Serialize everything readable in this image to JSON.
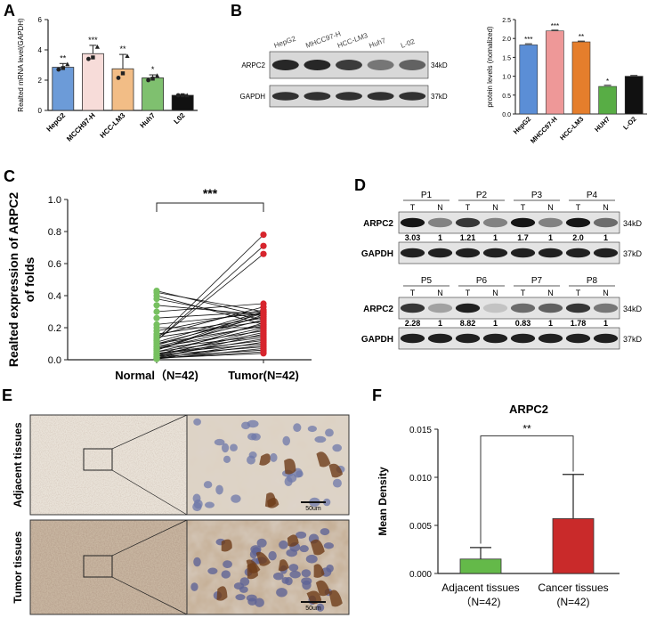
{
  "panels": {
    "A": {
      "letter": "A",
      "chart_data": {
        "type": "bar",
        "categories": [
          "HepG2",
          "MCCH97-H",
          "HCC-LM3",
          "Huh7",
          "L02"
        ],
        "values": [
          2.85,
          3.75,
          2.75,
          2.15,
          1.0
        ],
        "errors": [
          0.25,
          0.55,
          0.95,
          0.2,
          0.05
        ],
        "points": [
          [
            2.7,
            2.8,
            3.05
          ],
          [
            3.4,
            3.5,
            4.2
          ],
          [
            2.15,
            2.45,
            3.6
          ],
          [
            2.0,
            2.1,
            2.3
          ],
          [
            1.0,
            1.0,
            1.0
          ]
        ],
        "significance": [
          "**",
          "***",
          "**",
          "*",
          ""
        ],
        "colors": [
          "#6c9bd8",
          "#f7dcd9",
          "#f2bd86",
          "#7fc06f",
          "#111111"
        ],
        "ylabel": "Realted mRNA level(GAPDH)",
        "ylim": [
          0,
          6
        ],
        "yticks": [
          "0",
          "2",
          "4",
          "6"
        ]
      }
    },
    "B": {
      "letter": "B",
      "blot": {
        "lanes": [
          "HepG2",
          "MHCC97-H",
          "HCC-LM3",
          "Huh7",
          "L-02"
        ],
        "rows": [
          "ARPC2",
          "GAPDH"
        ],
        "sizes": [
          "34kD",
          "37kD"
        ]
      },
      "chart_data": {
        "type": "bar",
        "categories": [
          "HepG2",
          "MHCC97-H",
          "HCC-LM3",
          "HUH7",
          "L-O2"
        ],
        "values": [
          1.83,
          2.2,
          1.91,
          0.73,
          1.0
        ],
        "errors": [
          0.03,
          0.02,
          0.02,
          0.03,
          0.02
        ],
        "significance": [
          "***",
          "***",
          "**",
          "*",
          ""
        ],
        "colors": [
          "#5b8ed6",
          "#ee9898",
          "#e57e2c",
          "#58ad45",
          "#111111"
        ],
        "ylabel": "protein levels (nomalized)",
        "ylim": [
          0,
          2.5
        ],
        "yticks": [
          "0.0",
          "0.5",
          "1.0",
          "1.5",
          "2.0",
          "2.5"
        ]
      }
    },
    "C": {
      "letter": "C",
      "chart_data": {
        "type": "scatter",
        "x": [
          "Normal（N=42)",
          "Tumor(N=42)"
        ],
        "pairs": [
          [
            0.43,
            0.27
          ],
          [
            0.42,
            0.3
          ],
          [
            0.4,
            0.22
          ],
          [
            0.38,
            0.25
          ],
          [
            0.34,
            0.28
          ],
          [
            0.3,
            0.35
          ],
          [
            0.26,
            0.3
          ],
          [
            0.22,
            0.29
          ],
          [
            0.2,
            0.2
          ],
          [
            0.18,
            0.31
          ],
          [
            0.16,
            0.26
          ],
          [
            0.15,
            0.33
          ],
          [
            0.14,
            0.24
          ],
          [
            0.13,
            0.78
          ],
          [
            0.12,
            0.71
          ],
          [
            0.12,
            0.66
          ],
          [
            0.11,
            0.3
          ],
          [
            0.1,
            0.27
          ],
          [
            0.1,
            0.21
          ],
          [
            0.09,
            0.29
          ],
          [
            0.08,
            0.25
          ],
          [
            0.08,
            0.18
          ],
          [
            0.07,
            0.22
          ],
          [
            0.07,
            0.15
          ],
          [
            0.06,
            0.3
          ],
          [
            0.06,
            0.28
          ],
          [
            0.05,
            0.2
          ],
          [
            0.05,
            0.14
          ],
          [
            0.04,
            0.12
          ],
          [
            0.04,
            0.1
          ],
          [
            0.03,
            0.17
          ],
          [
            0.03,
            0.23
          ],
          [
            0.03,
            0.08
          ],
          [
            0.02,
            0.13
          ],
          [
            0.02,
            0.06
          ],
          [
            0.02,
            0.19
          ],
          [
            0.01,
            0.09
          ],
          [
            0.01,
            0.16
          ],
          [
            0.01,
            0.05
          ],
          [
            0.01,
            0.04
          ],
          [
            0.005,
            0.11
          ],
          [
            0.005,
            0.07
          ]
        ],
        "colors": {
          "normal": "#77c060",
          "tumor": "#d7252d"
        },
        "ylabel_line1": "Realted  expression of ARPC2",
        "ylabel_line2": "of folds",
        "ylim": [
          0,
          1.0
        ],
        "yticks": [
          "0.0",
          "0.2",
          "0.4",
          "0.6",
          "0.8",
          "1.0"
        ],
        "significance": "***"
      }
    },
    "D": {
      "letter": "D",
      "blocks": [
        {
          "patients": [
            "P1",
            "P2",
            "P3",
            "P4"
          ],
          "values": [
            "3.03",
            "1",
            "1.21",
            "1",
            "1.7",
            "1",
            "2.0",
            "1"
          ],
          "strengths": [
            0.95,
            0.45,
            0.8,
            0.45,
            0.95,
            0.45,
            0.95,
            0.55
          ]
        },
        {
          "patients": [
            "P5",
            "P6",
            "P7",
            "P8"
          ],
          "values": [
            "2.28",
            "1",
            "8.82",
            "1",
            "0.83",
            "1",
            "1.78",
            "1"
          ],
          "strengths": [
            0.8,
            0.3,
            0.9,
            0.15,
            0.55,
            0.6,
            0.8,
            0.5
          ]
        }
      ],
      "lane_labels": [
        "T",
        "N"
      ],
      "rows": [
        "ARPC2",
        "GAPDH"
      ],
      "sizes": [
        "34kD",
        "37kD"
      ]
    },
    "E": {
      "letter": "E",
      "rows": [
        "Adjacent tissues",
        "Tumor tissues"
      ],
      "scale_bar": "50um"
    },
    "F": {
      "letter": "F",
      "chart_data": {
        "type": "bar",
        "title": "ARPC2",
        "categories": [
          "Adjacent tissues",
          "Cancer tissues"
        ],
        "sublabels": [
          "（N=42)",
          "(N=42)"
        ],
        "values": [
          0.0015,
          0.0057
        ],
        "errors": [
          0.0012,
          0.0046
        ],
        "colors": [
          "#64b949",
          "#c92a2a"
        ],
        "ylabel": "Mean Density",
        "ylim": [
          0,
          0.015
        ],
        "yticks": [
          "0.000",
          "0.005",
          "0.010",
          "0.015"
        ],
        "significance": "**"
      }
    }
  }
}
